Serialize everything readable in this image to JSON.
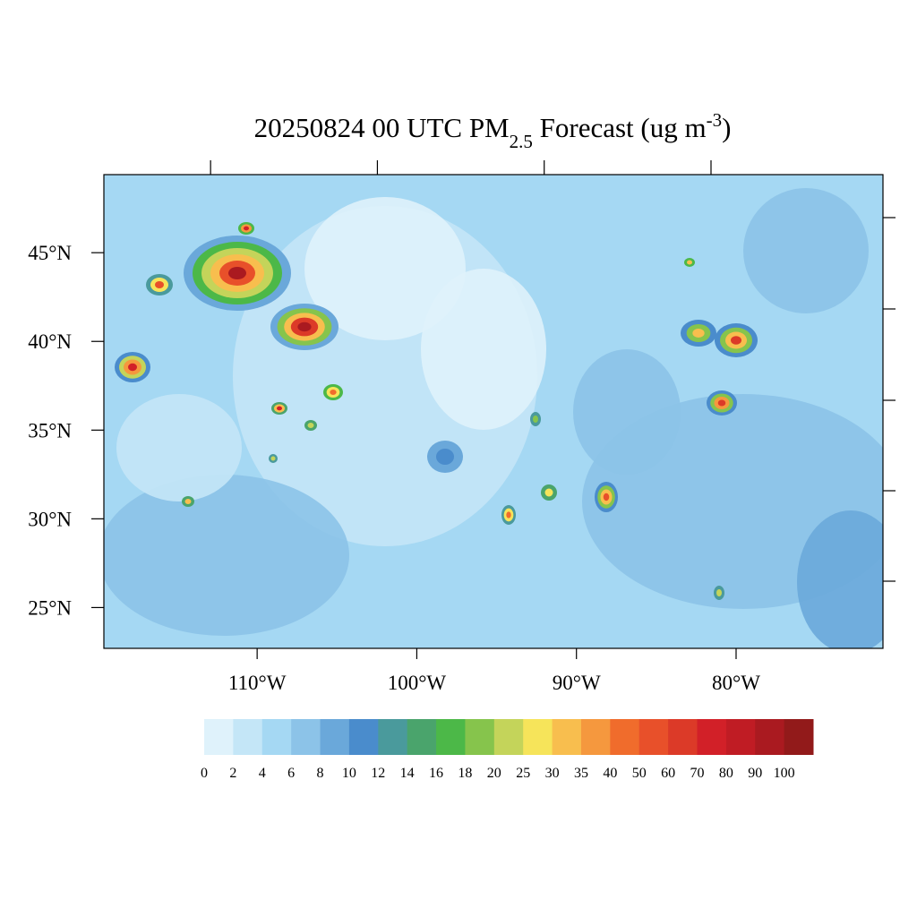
{
  "map": {
    "title": {
      "main": "20250824 00 UTC PM",
      "sub": "2.5",
      "mid": " Forecast (ug m",
      "sup": "-3",
      "end": ")"
    },
    "xlim": [
      -119.6,
      -70.8
    ],
    "ylim": [
      22.7,
      49.4
    ],
    "xticks": [
      {
        "value": -110,
        "label": "110°W"
      },
      {
        "value": -100,
        "label": "100°W"
      },
      {
        "value": -90,
        "label": "90°W"
      },
      {
        "value": -80,
        "label": "80°W"
      }
    ],
    "yticks": [
      {
        "value": 45,
        "label": "45°N"
      },
      {
        "value": 40,
        "label": "40°N"
      },
      {
        "value": 35,
        "label": "35°N"
      },
      {
        "value": 30,
        "label": "30°N"
      },
      {
        "value": 25,
        "label": "25°N"
      }
    ]
  },
  "colorbar": {
    "levels": [
      0,
      2,
      4,
      6,
      8,
      10,
      12,
      14,
      16,
      18,
      20,
      25,
      30,
      35,
      40,
      50,
      60,
      70,
      80,
      90,
      100
    ],
    "colors": [
      "#dff2fb",
      "#c4e6f7",
      "#a5d8f3",
      "#8cc3e8",
      "#6aa8da",
      "#4a8ccc",
      "#4a9a9c",
      "#4aa46c",
      "#4cb848",
      "#86c44c",
      "#c4d45a",
      "#f6e45a",
      "#f8be4e",
      "#f5983e",
      "#f06c2c",
      "#e8502a",
      "#dc3a28",
      "#d22028",
      "#c01c24",
      "#aa1a20",
      "#921a1a"
    ]
  }
}
